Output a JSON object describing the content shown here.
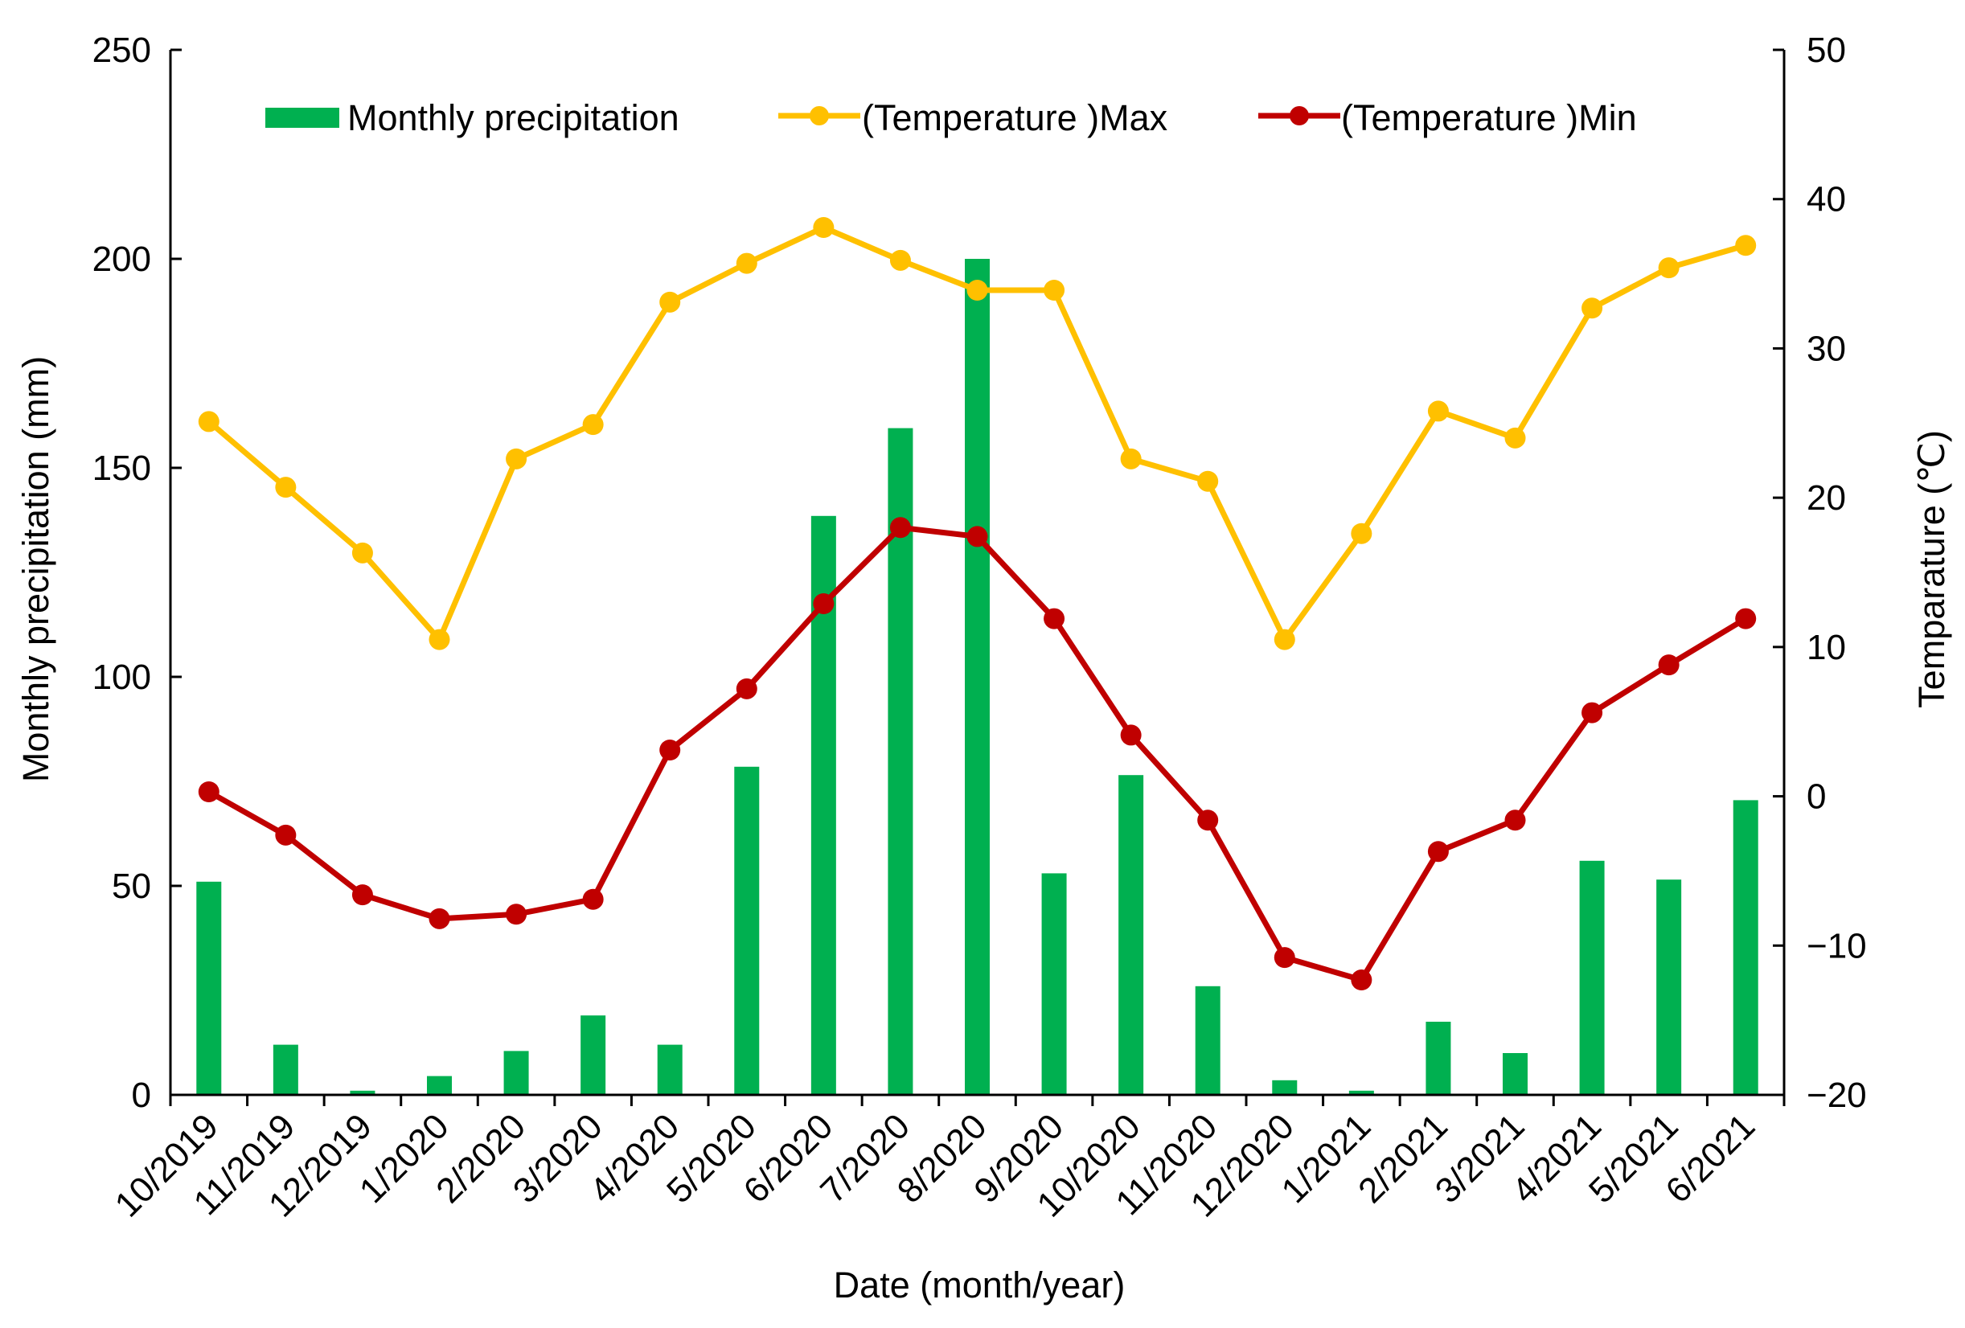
{
  "chart_data": {
    "type": "bar+line",
    "categories": [
      "10/2019",
      "11/2019",
      "12/2019",
      "1/2020",
      "2/2020",
      "3/2020",
      "4/2020",
      "5/2020",
      "6/2020",
      "7/2020",
      "8/2020",
      "9/2020",
      "10/2020",
      "11/2020",
      "12/2020",
      "1/2021",
      "2/2021",
      "3/2021",
      "4/2021",
      "5/2021",
      "6/2021"
    ],
    "xlabel": "Date (month/year)",
    "ylabel_left": "Monthly precipitation (mm)",
    "ylabel_right": "Temparature (℃)",
    "ylim_left": [
      0,
      250
    ],
    "yticks_left": [
      0,
      50,
      100,
      150,
      200,
      250
    ],
    "ylim_right": [
      -20,
      50
    ],
    "yticks_right": [
      -20,
      -10,
      0,
      10,
      20,
      30,
      40,
      50
    ],
    "yticks_right_labels": [
      "−20",
      "−10",
      "0",
      "10",
      "20",
      "30",
      "40",
      "50"
    ],
    "legend_position": "top",
    "series": [
      {
        "name": "Monthly precipitation",
        "type": "bar",
        "axis": "left",
        "color": "#00b050",
        "values": [
          51,
          12,
          1,
          4.5,
          10.5,
          19,
          12,
          78.5,
          138.5,
          159.5,
          200,
          53,
          76.5,
          26,
          3.5,
          1,
          17.5,
          10,
          56,
          51.5,
          70.5
        ]
      },
      {
        "name": "(Temperature )Max",
        "type": "line",
        "axis": "right",
        "color": "#ffc000",
        "values": [
          25.1,
          20.7,
          16.3,
          10.5,
          22.6,
          24.9,
          33.1,
          35.7,
          38.1,
          35.9,
          33.9,
          33.9,
          22.6,
          21.1,
          10.5,
          17.6,
          25.8,
          24.0,
          32.7,
          35.4,
          36.9
        ]
      },
      {
        "name": "(Temperature )Min",
        "type": "line",
        "axis": "right",
        "color": "#c00000",
        "values": [
          0.3,
          -2.6,
          -6.6,
          -8.2,
          -7.9,
          -6.9,
          3.1,
          7.2,
          12.9,
          18.0,
          17.4,
          11.9,
          4.1,
          -1.6,
          -10.8,
          -12.3,
          -3.7,
          -1.6,
          5.6,
          8.8,
          11.9
        ]
      }
    ]
  }
}
